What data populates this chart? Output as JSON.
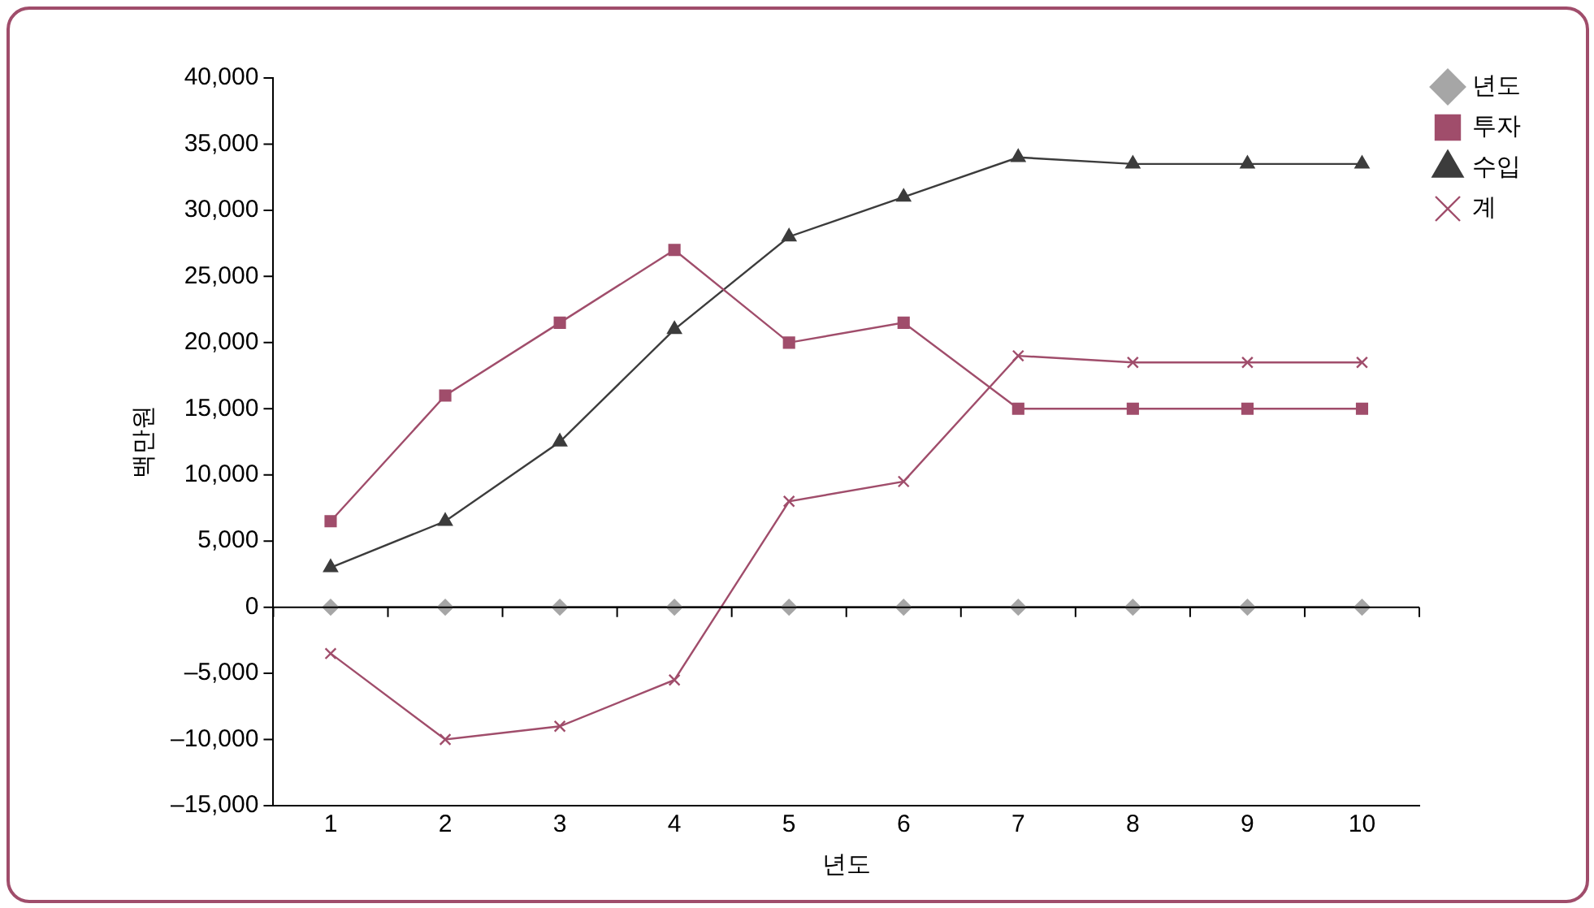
{
  "chart_data": {
    "type": "line",
    "xlabel": "년도",
    "ylabel": "백만원",
    "categories": [
      "1",
      "2",
      "3",
      "4",
      "5",
      "6",
      "7",
      "8",
      "9",
      "10"
    ],
    "series": [
      {
        "name": "년도",
        "color": "#a6a6a6",
        "marker": "diamond",
        "values": [
          0,
          0,
          0,
          0,
          0,
          0,
          0,
          0,
          0,
          0
        ]
      },
      {
        "name": "투자",
        "color": "#a04d6b",
        "marker": "square",
        "values": [
          6500,
          16000,
          21500,
          27000,
          20000,
          21500,
          15000,
          15000,
          15000,
          15000
        ]
      },
      {
        "name": "수입",
        "color": "#3c3c3c",
        "marker": "triangle",
        "values": [
          3000,
          6500,
          12500,
          21000,
          28000,
          31000,
          34000,
          33500,
          33500,
          33500
        ]
      },
      {
        "name": "계",
        "color": "#a04d6b",
        "marker": "cross",
        "values": [
          -3500,
          -10000,
          -9000,
          -5500,
          8000,
          9500,
          19000,
          18500,
          18500,
          18500
        ]
      }
    ],
    "ylim": [
      -15000,
      40000
    ],
    "yticks": [
      {
        "value": -15000,
        "label": "–15,000"
      },
      {
        "value": -10000,
        "label": "–10,000"
      },
      {
        "value": -5000,
        "label": "–5,000"
      },
      0,
      {
        "value": 5000,
        "label": "5,000"
      },
      {
        "value": 10000,
        "label": "10,000"
      },
      {
        "value": 15000,
        "label": "15,000"
      },
      {
        "value": 20000,
        "label": "20,000"
      },
      {
        "value": 25000,
        "label": "25,000"
      },
      {
        "value": 30000,
        "label": "30,000"
      },
      {
        "value": 35000,
        "label": "35,000"
      },
      {
        "value": 40000,
        "label": "40,000"
      }
    ],
    "grid": false,
    "legend": "top right",
    "ref_lines": [
      {
        "axis": "y",
        "value": 0,
        "color": "#000000"
      }
    ]
  }
}
